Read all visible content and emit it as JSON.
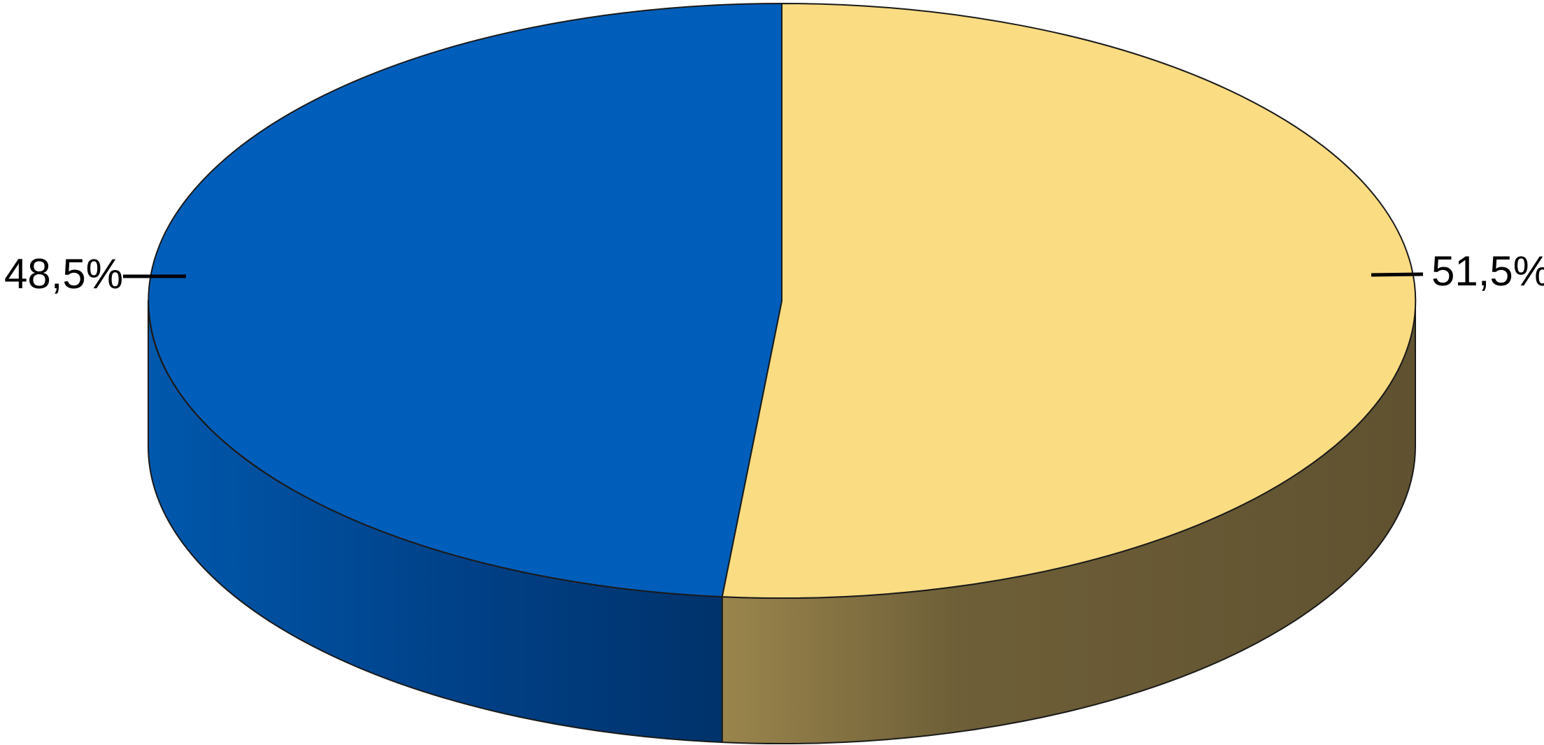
{
  "chart_data": {
    "type": "pie",
    "style": "3d",
    "title": "",
    "slices": [
      {
        "label": "51,5%",
        "value": 51.5,
        "color": "#fadc82",
        "side_color": "#655735"
      },
      {
        "label": "48,5%",
        "value": 48.5,
        "color": "#005ebb",
        "side_color": "#00397a"
      }
    ],
    "start_angle_deg": 0,
    "direction": "clockwise",
    "legend": "none"
  }
}
